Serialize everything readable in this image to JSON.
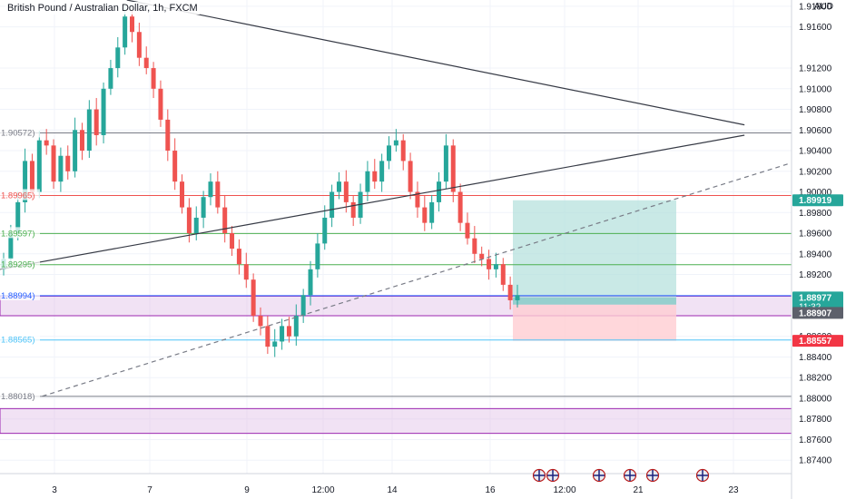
{
  "symbol": {
    "title": "British Pound / Australian Dollar, 1h, FXCM",
    "currency": "AUD"
  },
  "colors": {
    "up": "#26a69a",
    "down": "#ef5350",
    "profit_zone": "#b2dfdb",
    "loss_zone": "#ffcdd2",
    "zone_purple": "#e1bee7",
    "zone_purple_border": "#9c27b0",
    "grid": "#f0f3fa",
    "axis_text": "#131722"
  },
  "price_axis": {
    "ticks": [
      "1.91800",
      "1.91600",
      "1.91200",
      "1.91000",
      "1.90800",
      "1.90600",
      "1.90400",
      "1.90200",
      "1.90000",
      "1.89800",
      "1.89600",
      "1.89400",
      "1.89200",
      "1.88600",
      "1.88400",
      "1.88200",
      "1.88000",
      "1.87800",
      "1.87600",
      "1.87400"
    ],
    "tick_values": [
      1.918,
      1.916,
      1.912,
      1.91,
      1.908,
      1.906,
      1.904,
      1.902,
      1.9,
      1.898,
      1.896,
      1.894,
      1.892,
      1.886,
      1.884,
      1.882,
      1.88,
      1.878,
      1.876,
      1.874
    ],
    "min": 1.8727,
    "max": 1.9186
  },
  "time_axis": {
    "labels": [
      "3",
      "7",
      "9",
      "12:00",
      "14",
      "16",
      "12:00",
      "21",
      "23"
    ]
  },
  "levels": [
    {
      "price": 1.90572,
      "label": "1.90572)",
      "color": "#787b86"
    },
    {
      "price": 1.89965,
      "label": "1.89965)",
      "color": "#ef5350"
    },
    {
      "price": 1.89597,
      "label": "1.89597)",
      "color": "#4caf50"
    },
    {
      "price": 1.89295,
      "label": "1.89295)",
      "color": "#4caf50"
    },
    {
      "price": 1.88994,
      "label": "1.88994)",
      "color": "#2962ff"
    },
    {
      "price": 1.88565,
      "label": "1.88565)",
      "color": "#4fc3f7"
    },
    {
      "price": 1.88018,
      "label": "1.88018)",
      "color": "#787b86"
    }
  ],
  "zones": [
    {
      "top": 1.8899,
      "bottom": 1.888
    },
    {
      "top": 1.879,
      "bottom": 1.8766
    }
  ],
  "position": {
    "target": 1.89919,
    "entry": 1.88977,
    "stop": 1.88557,
    "target_label": "1.89919",
    "entry_label": "1.88977",
    "entry_countdown": "11:32",
    "current_label": "1.88907",
    "stop_label": "1.88557",
    "current": 1.88907
  },
  "chart_data": {
    "type": "candlestick",
    "title": "British Pound / Australian Dollar, 1h, FXCM",
    "x_labels": [
      "3",
      "7",
      "9",
      "12:00",
      "14",
      "16",
      "12:00",
      "21",
      "23"
    ],
    "ylim": [
      1.8727,
      1.9186
    ],
    "closes": [
      1.8935,
      1.896,
      1.899,
      1.903,
      1.9,
      1.905,
      1.9045,
      1.901,
      1.9035,
      1.902,
      1.906,
      1.904,
      1.908,
      1.9055,
      1.91,
      1.912,
      1.914,
      1.917,
      1.9155,
      1.913,
      1.912,
      1.91,
      1.907,
      1.904,
      1.901,
      1.8985,
      1.896,
      1.8975,
      1.8995,
      1.901,
      1.8985,
      1.896,
      1.8945,
      1.893,
      1.8915,
      1.888,
      1.887,
      1.885,
      1.8855,
      1.887,
      1.886,
      1.888,
      1.89,
      1.8925,
      1.895,
      1.8975,
      1.9,
      1.901,
      1.899,
      1.8975,
      1.9,
      1.902,
      1.901,
      1.903,
      1.9045,
      1.905,
      1.903,
      1.9,
      1.8985,
      1.897,
      1.899,
      1.901,
      1.9045,
      1.9,
      1.897,
      1.8955,
      1.894,
      1.8935,
      1.8925,
      1.893,
      1.891,
      1.8895,
      1.89
    ]
  },
  "trend_lines": [
    {
      "x1": 0.15,
      "p1": 1.9186,
      "x2": 0.88,
      "p2": 1.9065,
      "color": "#363a45",
      "dashed": false
    },
    {
      "x1": 0.0,
      "p1": 1.8925,
      "x2": 0.88,
      "p2": 1.9055,
      "color": "#363a45",
      "dashed": false
    },
    {
      "x1": 0.05,
      "p1": 1.8802,
      "x2": 0.935,
      "p2": 1.9028,
      "color": "#787b86",
      "dashed": true
    }
  ],
  "events": [
    "event-flag",
    "event-flag",
    "event-flag",
    "event-flag",
    "event-flag",
    "event-flag"
  ]
}
